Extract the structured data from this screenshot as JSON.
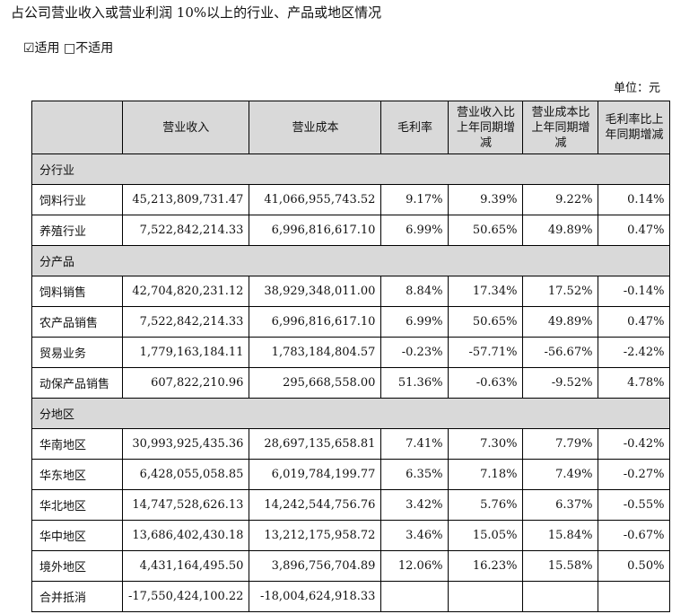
{
  "title": "占公司营业收入或营业利润 10%以上的行业、产品或地区情况",
  "applicability": {
    "checked_box": "☑",
    "applicable_label": "适用",
    "unchecked_box": "□",
    "not_applicable_label": "不适用"
  },
  "unit": "单位：元",
  "table": {
    "headers": [
      "",
      "营业收入",
      "营业成本",
      "毛利率",
      "营业收入比上年同期增减",
      "营业成本比上年同期增减",
      "毛利率比上年同期增减"
    ],
    "sections": [
      {
        "name": "分行业",
        "rows": [
          [
            "饲料行业",
            "45,213,809,731.47",
            "41,066,955,743.52",
            "9.17%",
            "9.39%",
            "9.22%",
            "0.14%"
          ],
          [
            "养殖行业",
            "7,522,842,214.33",
            "6,996,816,617.10",
            "6.99%",
            "50.65%",
            "49.89%",
            "0.47%"
          ]
        ]
      },
      {
        "name": "分产品",
        "rows": [
          [
            "饲料销售",
            "42,704,820,231.12",
            "38,929,348,011.00",
            "8.84%",
            "17.34%",
            "17.52%",
            "-0.14%"
          ],
          [
            "农产品销售",
            "7,522,842,214.33",
            "6,996,816,617.10",
            "6.99%",
            "50.65%",
            "49.89%",
            "0.47%"
          ],
          [
            "贸易业务",
            "1,779,163,184.11",
            "1,783,184,804.57",
            "-0.23%",
            "-57.71%",
            "-56.67%",
            "-2.42%"
          ],
          [
            "动保产品销售",
            "607,822,210.96",
            "295,668,558.00",
            "51.36%",
            "-0.63%",
            "-9.52%",
            "4.78%"
          ]
        ]
      },
      {
        "name": "分地区",
        "rows": [
          [
            "华南地区",
            "30,993,925,435.36",
            "28,697,135,658.81",
            "7.41%",
            "7.30%",
            "7.79%",
            "-0.42%"
          ],
          [
            "华东地区",
            "6,428,055,058.85",
            "6,019,784,199.77",
            "6.35%",
            "7.18%",
            "7.49%",
            "-0.27%"
          ],
          [
            "华北地区",
            "14,747,528,626.13",
            "14,242,544,756.76",
            "3.42%",
            "5.76%",
            "6.37%",
            "-0.55%"
          ],
          [
            "华中地区",
            "13,686,402,430.18",
            "13,212,175,958.72",
            "3.46%",
            "15.05%",
            "15.84%",
            "-0.67%"
          ],
          [
            "境外地区",
            "4,431,164,495.50",
            "3,896,756,704.89",
            "12.06%",
            "16.23%",
            "15.58%",
            "0.50%"
          ],
          [
            "合并抵消",
            "-17,550,424,100.22",
            "-18,004,624,918.33",
            "",
            "",
            "",
            ""
          ]
        ]
      }
    ]
  }
}
